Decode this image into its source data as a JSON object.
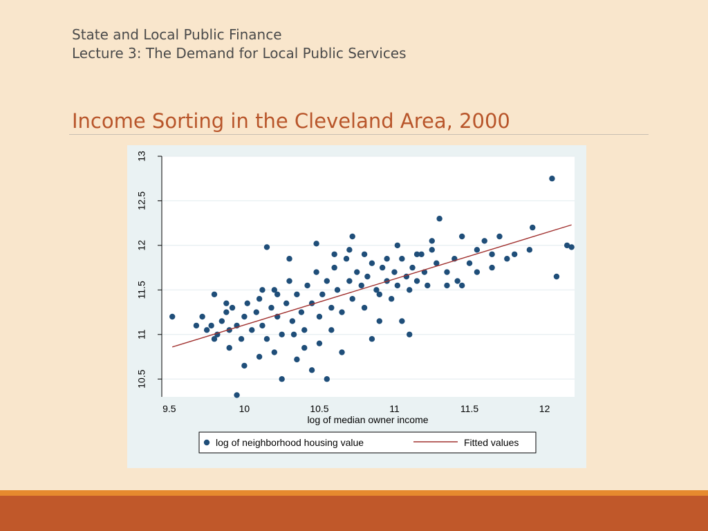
{
  "header": {
    "course": "State and Local Public Finance",
    "lecture": "Lecture 3:  The Demand for Local Public Services"
  },
  "slide_title": "Income Sorting in the Cleveland Area, 2000",
  "colors": {
    "background": "#f9e6cc",
    "title": "#b8552a",
    "points": "#1f4e79",
    "fitted_line": "#a0302e",
    "chart_panel": "#eaf2f3",
    "footer_stripe": "#e68a2e",
    "footer_bar": "#c0582a"
  },
  "chart_data": {
    "type": "scatter",
    "xlabel": "log of median owner income",
    "ylabel": "",
    "xlim": [
      9.45,
      12.2
    ],
    "ylim": [
      10.3,
      13.0
    ],
    "x_ticks": [
      "9.5",
      "10",
      "10.5",
      "11",
      "11.5",
      "12"
    ],
    "y_ticks": [
      "10.5",
      "11",
      "11.5",
      "12",
      "12.5",
      "13"
    ],
    "grid": true,
    "legend_position": "bottom",
    "series": [
      {
        "name": "log of neighborhood housing value",
        "kind": "scatter",
        "points": [
          [
            9.52,
            11.2
          ],
          [
            9.68,
            11.1
          ],
          [
            9.72,
            11.2
          ],
          [
            9.75,
            11.05
          ],
          [
            9.78,
            11.1
          ],
          [
            9.8,
            10.95
          ],
          [
            9.82,
            11.0
          ],
          [
            9.85,
            11.15
          ],
          [
            9.88,
            11.25
          ],
          [
            9.9,
            11.05
          ],
          [
            9.92,
            11.3
          ],
          [
            9.95,
            11.1
          ],
          [
            9.98,
            10.95
          ],
          [
            10.0,
            11.2
          ],
          [
            10.02,
            11.35
          ],
          [
            10.05,
            11.05
          ],
          [
            10.08,
            11.25
          ],
          [
            10.1,
            11.4
          ],
          [
            10.12,
            11.1
          ],
          [
            10.15,
            10.95
          ],
          [
            10.18,
            11.3
          ],
          [
            10.2,
            11.5
          ],
          [
            10.22,
            11.2
          ],
          [
            10.25,
            11.0
          ],
          [
            10.28,
            11.35
          ],
          [
            10.3,
            11.6
          ],
          [
            10.32,
            11.15
          ],
          [
            10.35,
            11.45
          ],
          [
            10.38,
            11.25
          ],
          [
            10.4,
            11.05
          ],
          [
            10.42,
            11.55
          ],
          [
            10.45,
            11.35
          ],
          [
            10.48,
            11.7
          ],
          [
            10.5,
            11.2
          ],
          [
            10.52,
            11.45
          ],
          [
            10.55,
            11.6
          ],
          [
            10.58,
            11.3
          ],
          [
            10.6,
            11.75
          ],
          [
            10.62,
            11.5
          ],
          [
            10.65,
            11.25
          ],
          [
            10.68,
            11.85
          ],
          [
            10.7,
            11.6
          ],
          [
            10.72,
            11.4
          ],
          [
            10.75,
            11.7
          ],
          [
            10.78,
            11.55
          ],
          [
            10.8,
            11.3
          ],
          [
            10.82,
            11.65
          ],
          [
            10.85,
            11.8
          ],
          [
            10.88,
            11.5
          ],
          [
            10.9,
            11.45
          ],
          [
            10.92,
            11.75
          ],
          [
            10.95,
            11.6
          ],
          [
            10.98,
            11.4
          ],
          [
            11.0,
            11.7
          ],
          [
            11.02,
            11.55
          ],
          [
            11.05,
            11.85
          ],
          [
            11.08,
            11.65
          ],
          [
            11.1,
            11.5
          ],
          [
            11.12,
            11.75
          ],
          [
            11.15,
            11.6
          ],
          [
            11.18,
            11.9
          ],
          [
            11.2,
            11.7
          ],
          [
            11.22,
            11.55
          ],
          [
            11.25,
            12.05
          ],
          [
            11.28,
            11.8
          ],
          [
            11.3,
            12.3
          ],
          [
            11.35,
            11.7
          ],
          [
            11.4,
            11.85
          ],
          [
            11.42,
            11.6
          ],
          [
            11.45,
            12.1
          ],
          [
            11.5,
            11.8
          ],
          [
            11.55,
            11.95
          ],
          [
            11.6,
            12.05
          ],
          [
            11.65,
            11.9
          ],
          [
            11.7,
            12.1
          ],
          [
            11.75,
            11.85
          ],
          [
            11.8,
            11.9
          ],
          [
            11.9,
            11.95
          ],
          [
            11.92,
            12.2
          ],
          [
            12.05,
            12.75
          ],
          [
            12.08,
            11.65
          ],
          [
            12.15,
            12.0
          ],
          [
            12.18,
            11.98
          ],
          [
            10.15,
            11.98
          ],
          [
            10.48,
            12.02
          ],
          [
            10.72,
            12.1
          ],
          [
            11.02,
            12.0
          ],
          [
            9.95,
            10.32
          ],
          [
            10.25,
            10.5
          ],
          [
            10.55,
            10.5
          ],
          [
            10.3,
            11.85
          ],
          [
            10.6,
            11.9
          ],
          [
            10.9,
            11.15
          ],
          [
            11.05,
            11.15
          ],
          [
            11.1,
            11.0
          ],
          [
            10.85,
            10.95
          ],
          [
            10.65,
            10.8
          ],
          [
            10.45,
            10.6
          ],
          [
            10.35,
            10.72
          ],
          [
            10.1,
            10.75
          ],
          [
            10.0,
            10.65
          ],
          [
            9.9,
            10.85
          ],
          [
            10.5,
            10.9
          ],
          [
            10.4,
            10.85
          ],
          [
            10.2,
            10.8
          ],
          [
            10.58,
            11.05
          ],
          [
            10.33,
            11.0
          ],
          [
            10.22,
            11.45
          ],
          [
            10.12,
            11.5
          ],
          [
            9.88,
            11.35
          ],
          [
            9.8,
            11.45
          ],
          [
            10.7,
            11.95
          ],
          [
            10.8,
            11.9
          ],
          [
            10.95,
            11.85
          ],
          [
            11.15,
            11.9
          ],
          [
            11.25,
            11.95
          ],
          [
            11.35,
            11.55
          ],
          [
            11.45,
            11.55
          ],
          [
            11.55,
            11.7
          ],
          [
            11.65,
            11.75
          ]
        ]
      },
      {
        "name": "Fitted values",
        "kind": "line",
        "points": [
          [
            9.52,
            10.86
          ],
          [
            12.18,
            12.23
          ]
        ]
      }
    ]
  }
}
